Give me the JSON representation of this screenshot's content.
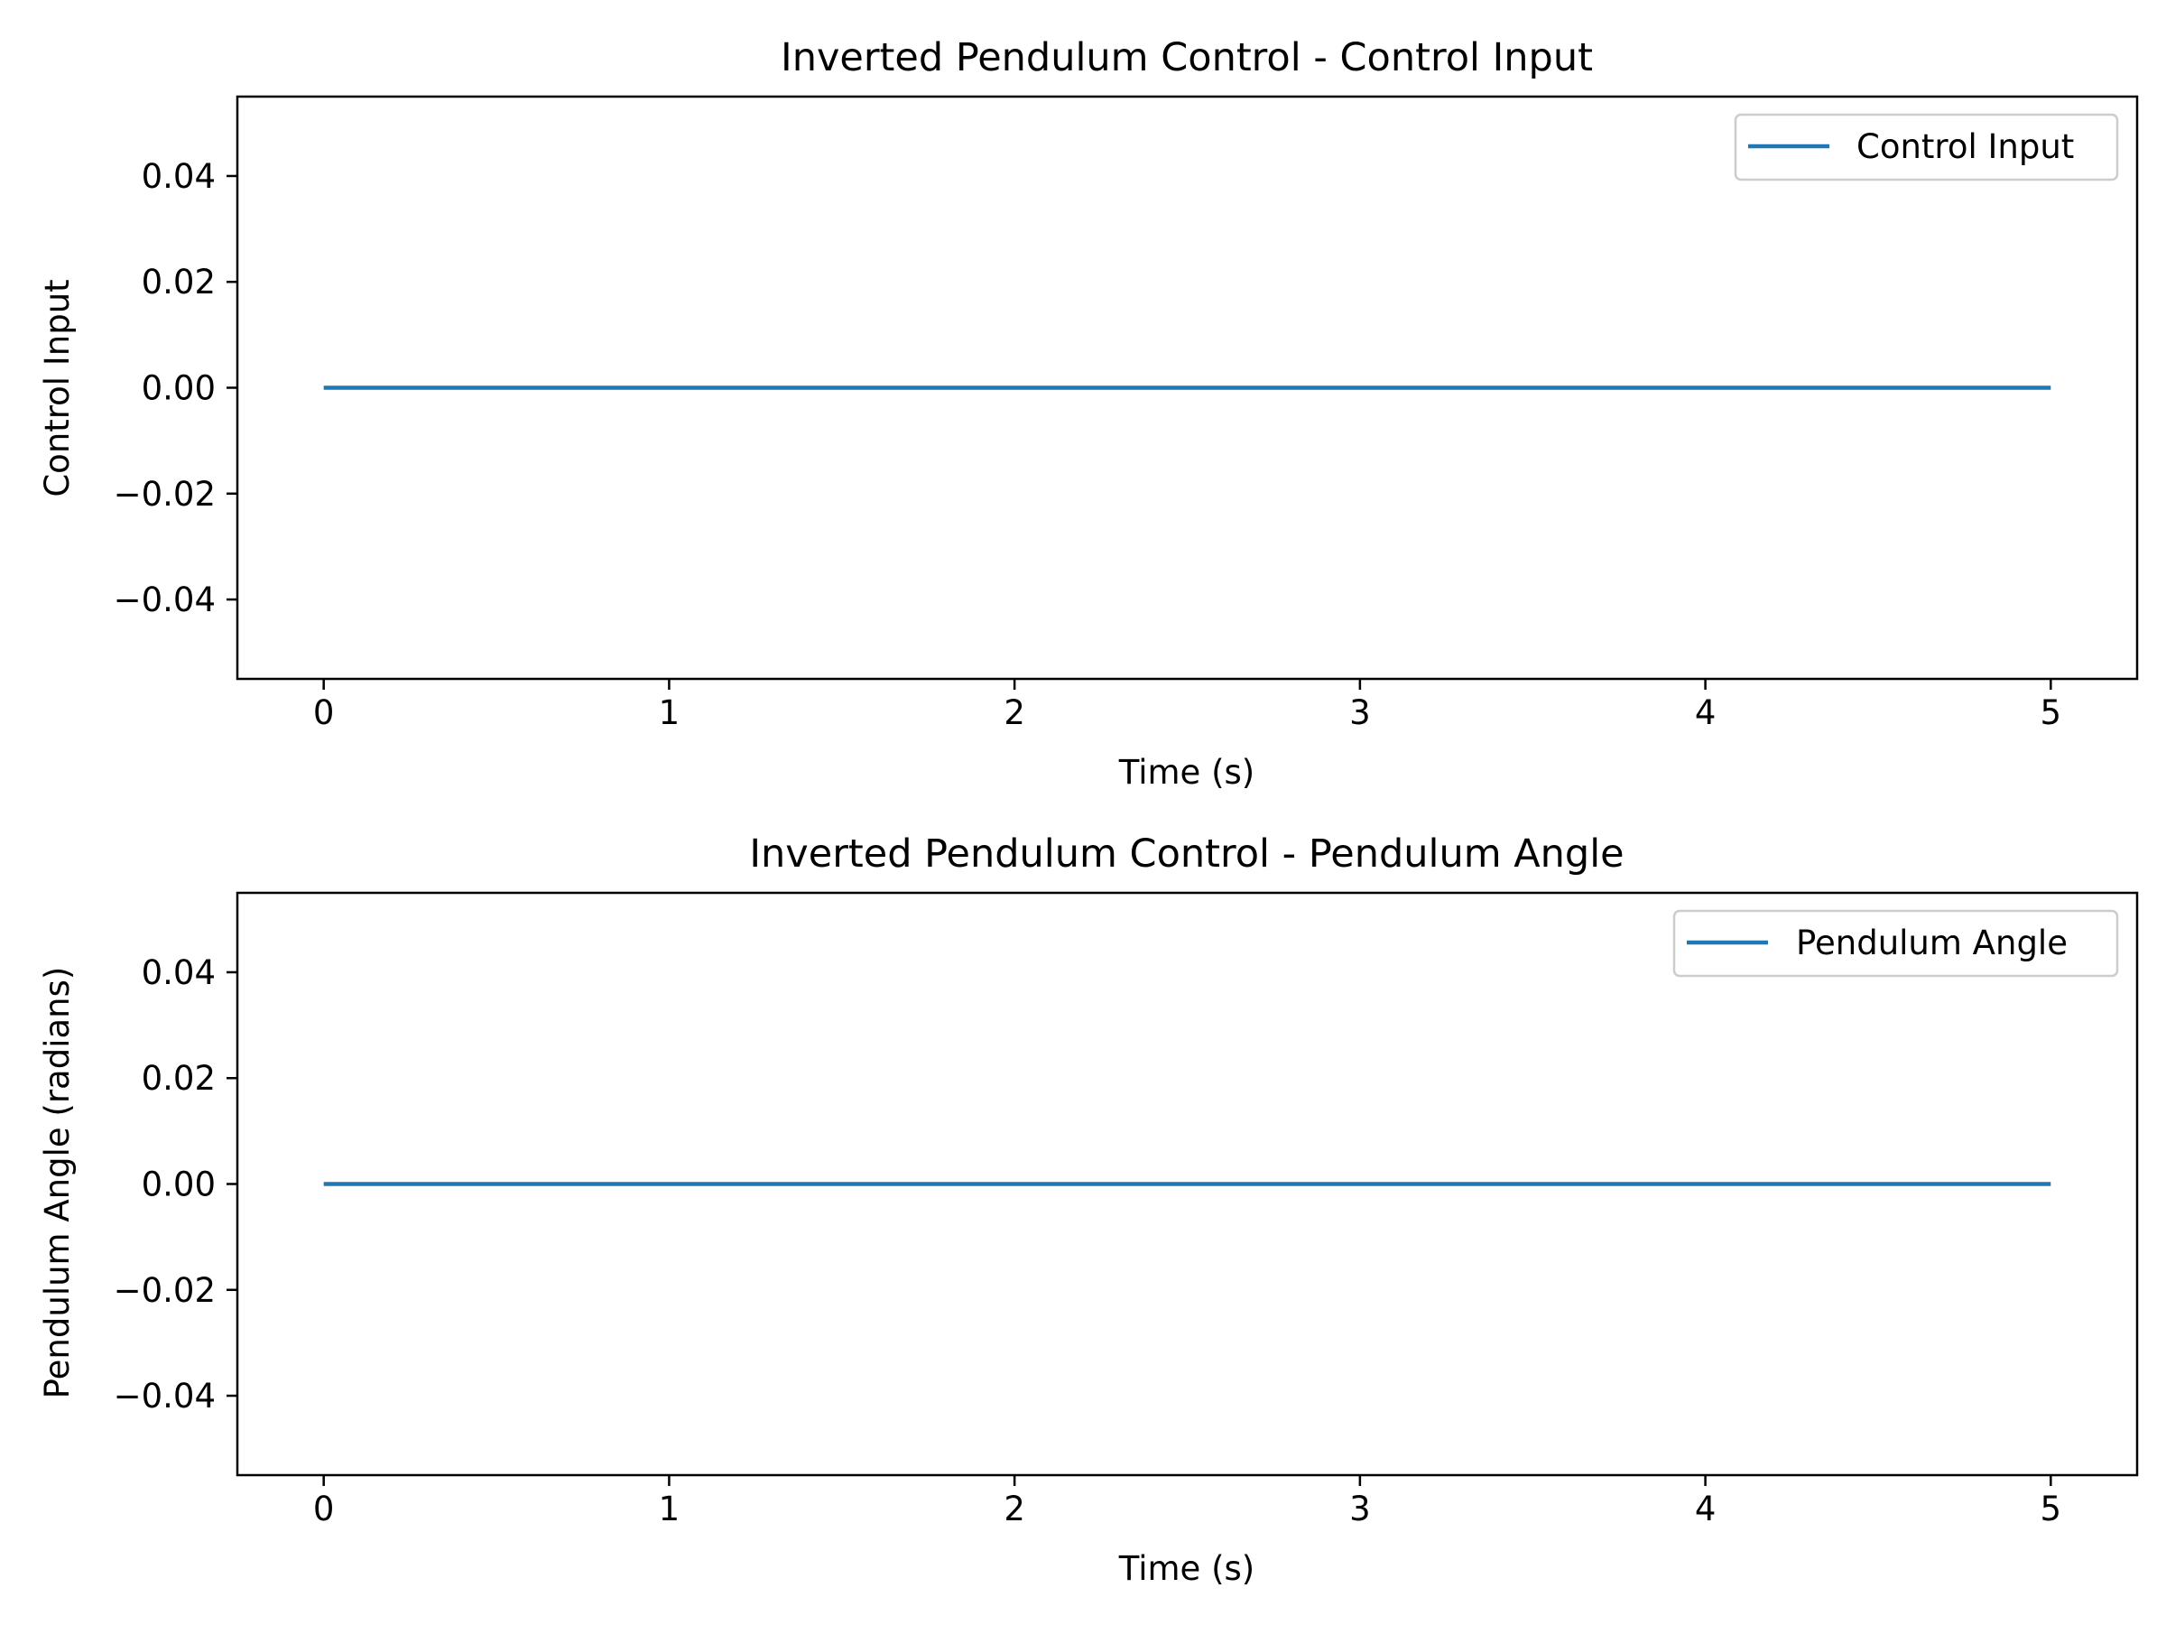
{
  "chart_data": [
    {
      "type": "line",
      "title": "Inverted Pendulum Control - Control Input",
      "xlabel": "Time (s)",
      "ylabel": "Control Input",
      "xlim": [
        -0.25,
        5.25
      ],
      "ylim": [
        -0.055,
        0.055
      ],
      "xticks": [
        0,
        1,
        2,
        3,
        4,
        5
      ],
      "xtick_labels": [
        "0",
        "1",
        "2",
        "3",
        "4",
        "5"
      ],
      "yticks": [
        0.04,
        0.02,
        0.0,
        -0.02,
        -0.04
      ],
      "ytick_labels": [
        "0.04",
        "0.02",
        "0.00",
        "−0.02",
        "−0.04"
      ],
      "grid": false,
      "legend_position": "top-right",
      "series": [
        {
          "name": "Control Input",
          "color": "#1f77b4",
          "x": [
            0,
            5
          ],
          "y": [
            0,
            0
          ]
        }
      ]
    },
    {
      "type": "line",
      "title": "Inverted Pendulum Control - Pendulum Angle",
      "xlabel": "Time (s)",
      "ylabel": "Pendulum Angle (radians)",
      "xlim": [
        -0.25,
        5.25
      ],
      "ylim": [
        -0.055,
        0.055
      ],
      "xticks": [
        0,
        1,
        2,
        3,
        4,
        5
      ],
      "xtick_labels": [
        "0",
        "1",
        "2",
        "3",
        "4",
        "5"
      ],
      "yticks": [
        0.04,
        0.02,
        0.0,
        -0.02,
        -0.04
      ],
      "ytick_labels": [
        "0.04",
        "0.02",
        "0.00",
        "−0.02",
        "−0.04"
      ],
      "grid": false,
      "legend_position": "top-right",
      "series": [
        {
          "name": "Pendulum Angle",
          "color": "#1f77b4",
          "x": [
            0,
            5
          ],
          "y": [
            0,
            0
          ]
        }
      ]
    }
  ]
}
